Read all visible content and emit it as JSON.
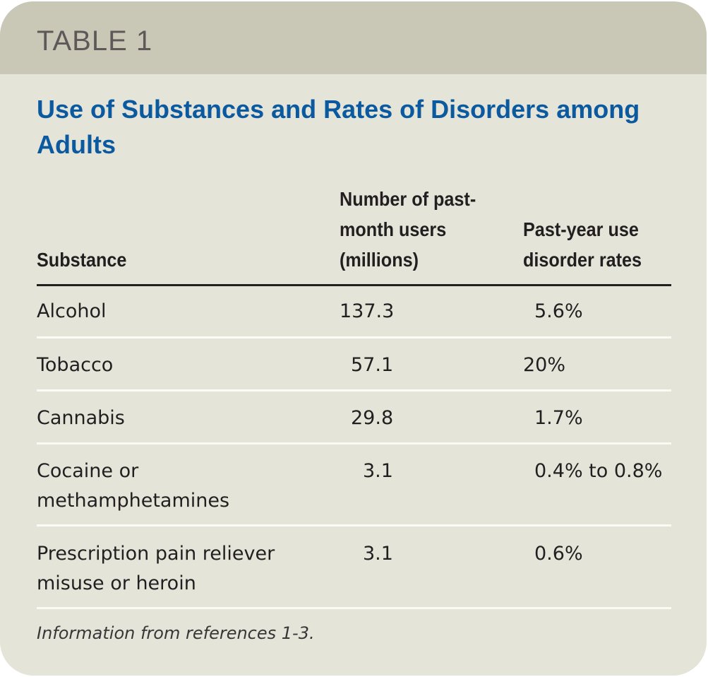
{
  "label": "TABLE 1",
  "title": "Use of Substances and Rates of Disorders among Adults",
  "columns": [
    "Substance",
    "Number of past-month users (millions)",
    "Past-year use disorder rates"
  ],
  "rows": [
    {
      "substance": "Alcohol",
      "users": "137.3",
      "rate": "5.6%"
    },
    {
      "substance": "Tobacco",
      "users": "57.1",
      "rate": "20%"
    },
    {
      "substance": "Cannabis",
      "users": "29.8",
      "rate": "1.7%"
    },
    {
      "substance": "Cocaine or methamphetamines",
      "users": "3.1",
      "rate": "0.4% to 0.8%"
    },
    {
      "substance": "Prescription pain reliever misuse or heroin",
      "users": "3.1",
      "rate": "0.6%"
    }
  ],
  "footnote": "Information from references 1-3.",
  "colors": {
    "title": "#0b5aa0",
    "band": "#c9c8b7",
    "background": "#e5e4d9"
  }
}
